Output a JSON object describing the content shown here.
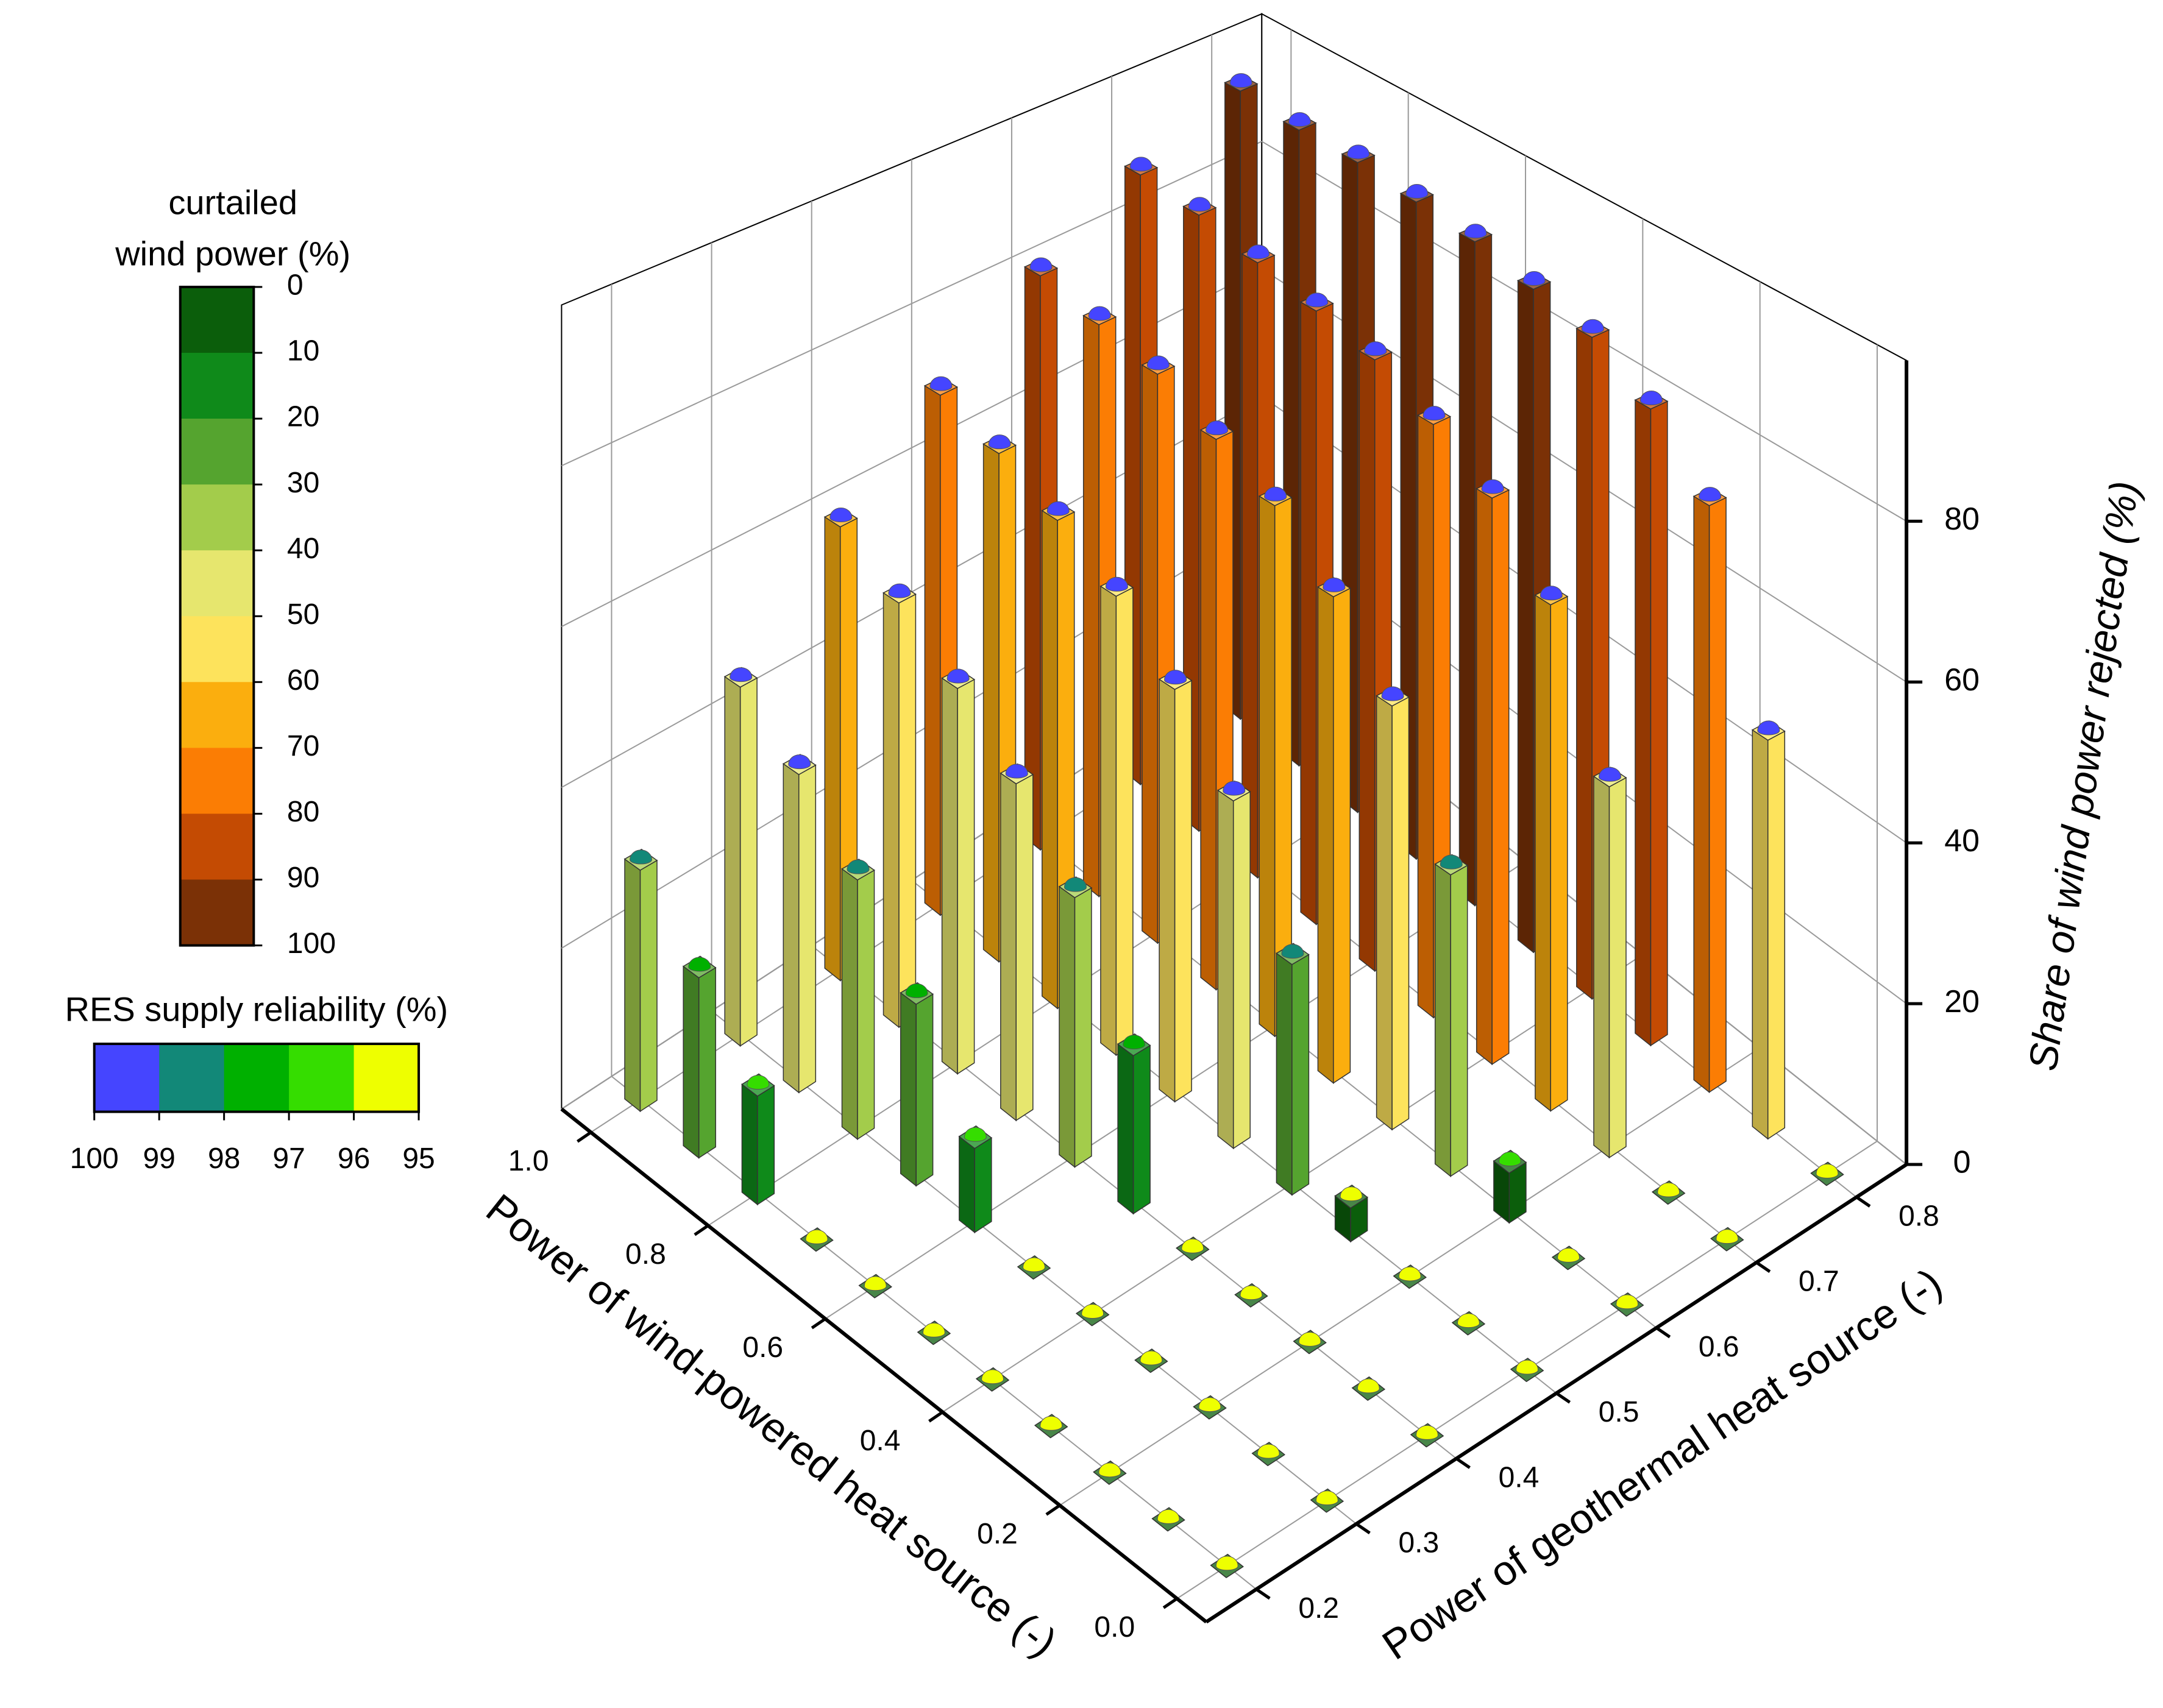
{
  "chart_data": {
    "type": "bar3d",
    "x_label": "Power of wind-powered heat source (-)",
    "y_label": "Power of geothermal heat source (-)",
    "z_label": "Share of wind power rejected (%)",
    "x": [
      0,
      0.1,
      0.2,
      0.3,
      0.4,
      0.5,
      0.6,
      0.7,
      0.8,
      0.9,
      1
    ],
    "y": [
      0.2,
      0.3,
      0.4,
      0.5,
      0.6,
      0.7,
      0.8
    ],
    "values": [
      [
        0,
        0,
        0,
        0,
        0,
        0,
        0
      ],
      [
        0,
        0,
        0,
        0,
        0,
        0,
        50
      ],
      [
        0,
        0,
        0,
        0,
        6,
        46,
        75
      ],
      [
        0,
        0,
        0,
        4,
        37,
        64,
        83
      ],
      [
        0,
        0,
        0,
        28,
        53,
        73,
        88
      ],
      [
        0,
        0,
        19,
        43,
        62,
        78,
        90
      ],
      [
        0,
        10,
        33,
        52,
        69,
        82,
        92
      ],
      [
        0,
        22,
        42,
        59,
        73,
        84,
        93
      ],
      [
        13,
        32,
        49,
        64,
        77,
        86,
        94
      ],
      [
        22,
        40,
        55,
        68,
        79,
        88,
        94
      ],
      [
        30,
        46,
        60,
        71,
        81,
        89,
        95
      ]
    ],
    "reliability": [
      [
        96,
        96,
        96,
        96,
        96,
        96,
        96
      ],
      [
        96,
        96,
        96,
        96,
        96,
        96,
        100
      ],
      [
        96,
        96,
        96,
        96,
        97,
        100,
        100
      ],
      [
        96,
        96,
        96,
        96,
        99,
        100,
        100
      ],
      [
        96,
        96,
        96,
        99,
        100,
        100,
        100
      ],
      [
        96,
        96,
        98,
        100,
        100,
        100,
        100
      ],
      [
        96,
        97,
        99,
        100,
        100,
        100,
        100
      ],
      [
        96,
        98,
        100,
        100,
        100,
        100,
        100
      ],
      [
        97,
        99,
        100,
        100,
        100,
        100,
        100
      ],
      [
        98,
        100,
        100,
        100,
        100,
        100,
        100
      ],
      [
        99,
        100,
        100,
        100,
        100,
        100,
        100
      ]
    ],
    "xlim": [
      -0.05,
      1.05
    ],
    "ylim": [
      0.15,
      0.85
    ],
    "zlim": [
      0,
      100
    ],
    "xticks": [
      {
        "value": 0,
        "label": "0.0"
      },
      0.2,
      0.4,
      0.6,
      0.8,
      {
        "value": 1,
        "label": "1.0"
      }
    ],
    "yticks": [
      0.2,
      0.3,
      0.4,
      0.5,
      0.6,
      0.7,
      0.8
    ],
    "zticks": [
      0,
      20,
      40,
      60,
      80
    ],
    "grid": true,
    "colorbar": {
      "title_lines": [
        "curtailed",
        "wind power (%)"
      ],
      "levels": [
        0,
        10,
        20,
        30,
        40,
        50,
        60,
        70,
        80,
        90,
        100
      ],
      "colors": [
        "#0b5e0b",
        "#0f8a1a",
        "#55a42f",
        "#a3cc4b",
        "#e6e66e",
        "#fde35c",
        "#fbae0e",
        "#fb7d04",
        "#c44b03",
        "#7b3106"
      ]
    },
    "reliability_colorbar": {
      "title": "RES supply reliability (%)",
      "levels": [
        100,
        99,
        98,
        97,
        96,
        95
      ],
      "colors": [
        "#4545ff",
        "#128878",
        "#00b000",
        "#35dd00",
        "#eeff00"
      ]
    }
  }
}
